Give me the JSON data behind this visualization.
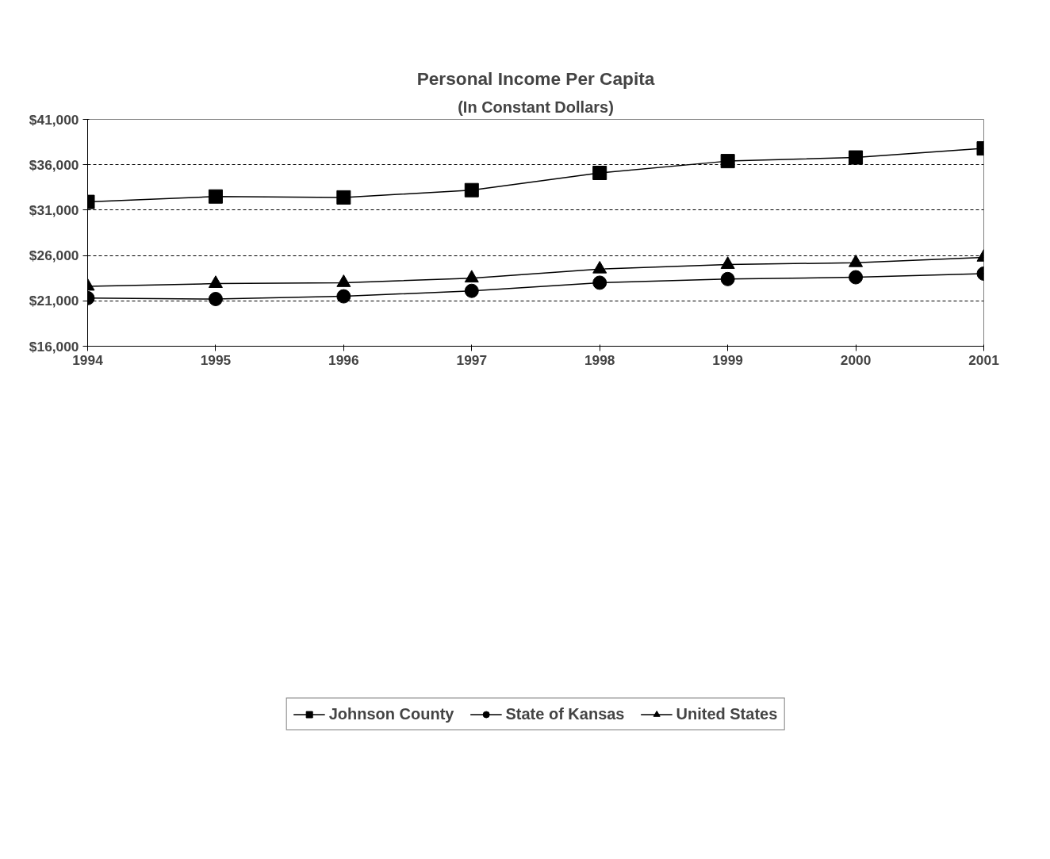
{
  "chart_data": {
    "type": "line",
    "title": "Personal Income Per Capita",
    "subtitle": "(In Constant Dollars)",
    "x": [
      1994,
      1995,
      1996,
      1997,
      1998,
      1999,
      2000,
      2001
    ],
    "xlim": [
      1994,
      2001
    ],
    "xticks": [
      1994,
      1995,
      1996,
      1997,
      1998,
      1999,
      2000,
      2001
    ],
    "ylim": [
      16000,
      41000
    ],
    "yticks": [
      {
        "value": 16000,
        "label": "$16,000"
      },
      {
        "value": 21000,
        "label": "$21,000"
      },
      {
        "value": 26000,
        "label": "$26,000"
      },
      {
        "value": 31000,
        "label": "$31,000"
      },
      {
        "value": 36000,
        "label": "$36,000"
      },
      {
        "value": 41000,
        "label": "$41,000"
      }
    ],
    "grid": "y",
    "legend": "bottom",
    "series": [
      {
        "name": "Johnson County",
        "color": "#000000",
        "marker": "square",
        "values": [
          31900,
          32500,
          32400,
          33200,
          35100,
          36400,
          36800,
          37800
        ]
      },
      {
        "name": "State of Kansas",
        "color": "#000000",
        "marker": "circle",
        "values": [
          21300,
          21200,
          21500,
          22100,
          23000,
          23400,
          23600,
          24000
        ]
      },
      {
        "name": "United States",
        "color": "#000000",
        "marker": "triangle",
        "values": [
          22600,
          22900,
          23000,
          23500,
          24500,
          25000,
          25200,
          25800
        ]
      }
    ]
  }
}
